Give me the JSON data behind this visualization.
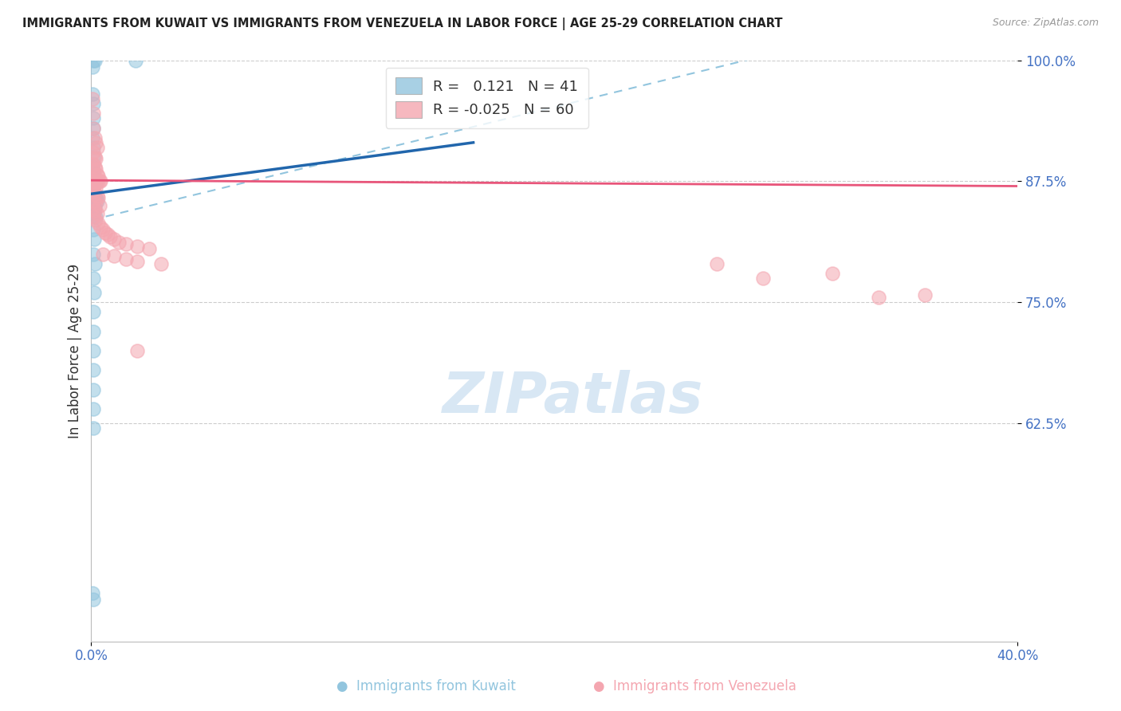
{
  "title": "IMMIGRANTS FROM KUWAIT VS IMMIGRANTS FROM VENEZUELA IN LABOR FORCE | AGE 25-29 CORRELATION CHART",
  "source": "Source: ZipAtlas.com",
  "ylabel": "In Labor Force | Age 25-29",
  "xlim": [
    0.0,
    0.4
  ],
  "ylim": [
    0.4,
    1.0
  ],
  "ytick_vals": [
    0.625,
    0.75,
    0.875,
    1.0
  ],
  "ytick_labels": [
    "62.5%",
    "75.0%",
    "87.5%",
    "100.0%"
  ],
  "xtick_vals": [
    0.0,
    0.4
  ],
  "xtick_labels": [
    "0.0%",
    "40.0%"
  ],
  "kuwait_R": 0.121,
  "kuwait_N": 41,
  "venezuela_R": -0.025,
  "venezuela_N": 60,
  "kuwait_color": "#92c5de",
  "venezuela_color": "#f4a6b0",
  "kuwait_line_color": "#2166ac",
  "venezuela_line_color": "#e8557a",
  "dashed_line_color": "#92c5de",
  "kuwait_scatter": [
    [
      0.0005,
      0.993
    ],
    [
      0.001,
      1.0
    ],
    [
      0.0015,
      1.0
    ],
    [
      0.019,
      1.0
    ],
    [
      0.0005,
      0.965
    ],
    [
      0.0008,
      0.955
    ],
    [
      0.0008,
      0.94
    ],
    [
      0.001,
      0.93
    ],
    [
      0.0006,
      0.92
    ],
    [
      0.0008,
      0.91
    ],
    [
      0.001,
      0.9
    ],
    [
      0.0005,
      0.89
    ],
    [
      0.001,
      0.885
    ],
    [
      0.0012,
      0.878
    ],
    [
      0.0008,
      0.875
    ],
    [
      0.0015,
      0.875
    ],
    [
      0.002,
      0.875
    ],
    [
      0.0005,
      0.87
    ],
    [
      0.001,
      0.868
    ],
    [
      0.0015,
      0.86
    ],
    [
      0.002,
      0.858
    ],
    [
      0.0025,
      0.855
    ],
    [
      0.0008,
      0.85
    ],
    [
      0.0015,
      0.848
    ],
    [
      0.001,
      0.84
    ],
    [
      0.002,
      0.838
    ],
    [
      0.001,
      0.825
    ],
    [
      0.0012,
      0.815
    ],
    [
      0.001,
      0.8
    ],
    [
      0.0015,
      0.79
    ],
    [
      0.0008,
      0.775
    ],
    [
      0.0012,
      0.76
    ],
    [
      0.001,
      0.74
    ],
    [
      0.0008,
      0.72
    ],
    [
      0.001,
      0.7
    ],
    [
      0.0008,
      0.68
    ],
    [
      0.001,
      0.66
    ],
    [
      0.0008,
      0.64
    ],
    [
      0.001,
      0.62
    ],
    [
      0.0005,
      0.45
    ],
    [
      0.0008,
      0.443
    ]
  ],
  "venezuela_scatter": [
    [
      0.0005,
      0.96
    ],
    [
      0.001,
      0.945
    ],
    [
      0.001,
      0.93
    ],
    [
      0.0015,
      0.92
    ],
    [
      0.002,
      0.915
    ],
    [
      0.0025,
      0.91
    ],
    [
      0.0008,
      0.905
    ],
    [
      0.0015,
      0.9
    ],
    [
      0.002,
      0.898
    ],
    [
      0.0008,
      0.893
    ],
    [
      0.0015,
      0.89
    ],
    [
      0.002,
      0.888
    ],
    [
      0.001,
      0.885
    ],
    [
      0.0025,
      0.882
    ],
    [
      0.003,
      0.88
    ],
    [
      0.0005,
      0.878
    ],
    [
      0.001,
      0.875
    ],
    [
      0.0015,
      0.875
    ],
    [
      0.002,
      0.875
    ],
    [
      0.0025,
      0.875
    ],
    [
      0.003,
      0.875
    ],
    [
      0.0035,
      0.875
    ],
    [
      0.004,
      0.875
    ],
    [
      0.0008,
      0.872
    ],
    [
      0.0012,
      0.87
    ],
    [
      0.0018,
      0.868
    ],
    [
      0.0008,
      0.865
    ],
    [
      0.0015,
      0.862
    ],
    [
      0.0025,
      0.86
    ],
    [
      0.003,
      0.858
    ],
    [
      0.001,
      0.855
    ],
    [
      0.002,
      0.852
    ],
    [
      0.0035,
      0.85
    ],
    [
      0.0008,
      0.848
    ],
    [
      0.0015,
      0.845
    ],
    [
      0.0025,
      0.842
    ],
    [
      0.001,
      0.838
    ],
    [
      0.002,
      0.835
    ],
    [
      0.003,
      0.832
    ],
    [
      0.004,
      0.828
    ],
    [
      0.005,
      0.825
    ],
    [
      0.006,
      0.822
    ],
    [
      0.007,
      0.82
    ],
    [
      0.008,
      0.818
    ],
    [
      0.01,
      0.815
    ],
    [
      0.012,
      0.812
    ],
    [
      0.015,
      0.81
    ],
    [
      0.02,
      0.808
    ],
    [
      0.025,
      0.805
    ],
    [
      0.005,
      0.8
    ],
    [
      0.01,
      0.798
    ],
    [
      0.015,
      0.795
    ],
    [
      0.02,
      0.792
    ],
    [
      0.03,
      0.79
    ],
    [
      0.02,
      0.7
    ],
    [
      0.27,
      0.79
    ],
    [
      0.29,
      0.775
    ],
    [
      0.32,
      0.78
    ],
    [
      0.34,
      0.755
    ],
    [
      0.36,
      0.758
    ]
  ],
  "watermark_text": "ZIPatlas",
  "background_color": "#ffffff",
  "grid_color": "#cccccc"
}
